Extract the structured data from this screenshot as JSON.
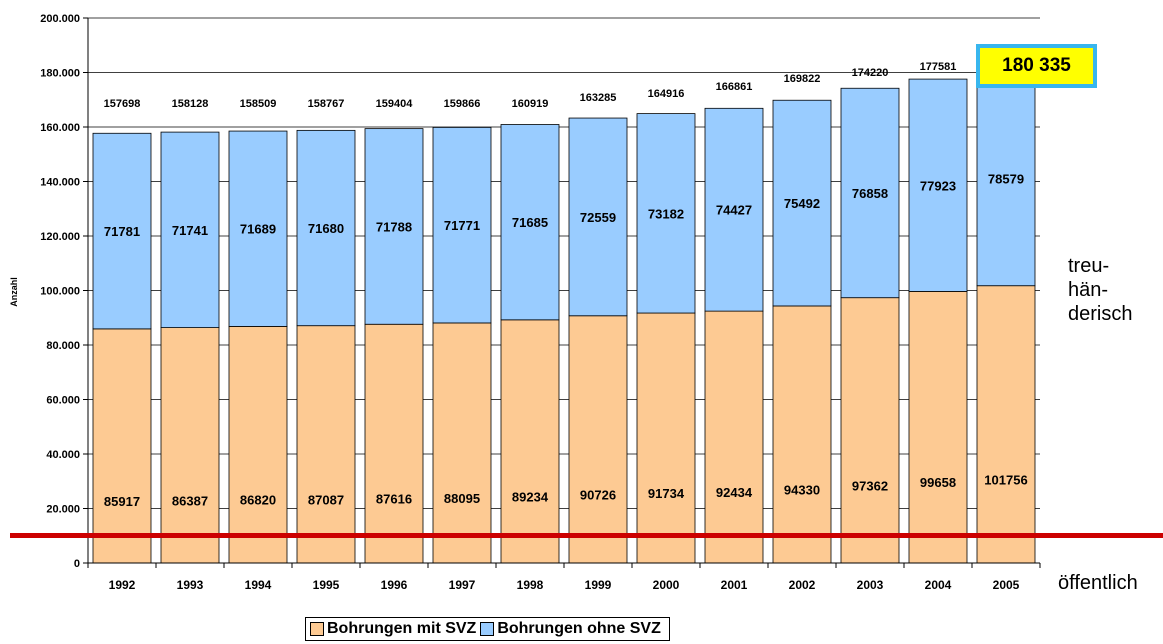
{
  "chart_data": {
    "type": "bar",
    "stacked": true,
    "ylabel": "Anzahl",
    "ylim": [
      0,
      200000
    ],
    "yticks": [
      "0",
      "20.000",
      "40.000",
      "60.000",
      "80.000",
      "100.000",
      "120.000",
      "140.000",
      "160.000",
      "180.000",
      "200.000"
    ],
    "ytick_values": [
      0,
      20000,
      40000,
      60000,
      80000,
      100000,
      120000,
      140000,
      160000,
      180000,
      200000
    ],
    "categories": [
      "1992",
      "1993",
      "1994",
      "1995",
      "1996",
      "1997",
      "1998",
      "1999",
      "2000",
      "2001",
      "2002",
      "2003",
      "2004",
      "2005"
    ],
    "series": [
      {
        "name": "Bohrungen mit SVZ",
        "color": "#fdca93",
        "values": [
          85917,
          86387,
          86820,
          87087,
          87616,
          88095,
          89234,
          90726,
          91734,
          92434,
          94330,
          97362,
          99658,
          101756
        ]
      },
      {
        "name": "Bohrungen ohne SVZ",
        "color": "#99ccff",
        "values": [
          71781,
          71741,
          71689,
          71680,
          71788,
          71771,
          71685,
          72559,
          73182,
          74427,
          75492,
          76858,
          77923,
          78579
        ]
      }
    ],
    "totals": [
      "157698",
      "158128",
      "158509",
      "158767",
      "159404",
      "159866",
      "160919",
      "163285",
      "164916",
      "166861",
      "169822",
      "174220",
      "177581",
      ""
    ],
    "highlight_total": "180 335",
    "grid": true,
    "legend_position": "bottom"
  },
  "annotations": {
    "upper": [
      "treu-",
      "hän-",
      "derisch"
    ],
    "lower": "öffentlich",
    "divider_color": "#cc0000"
  }
}
